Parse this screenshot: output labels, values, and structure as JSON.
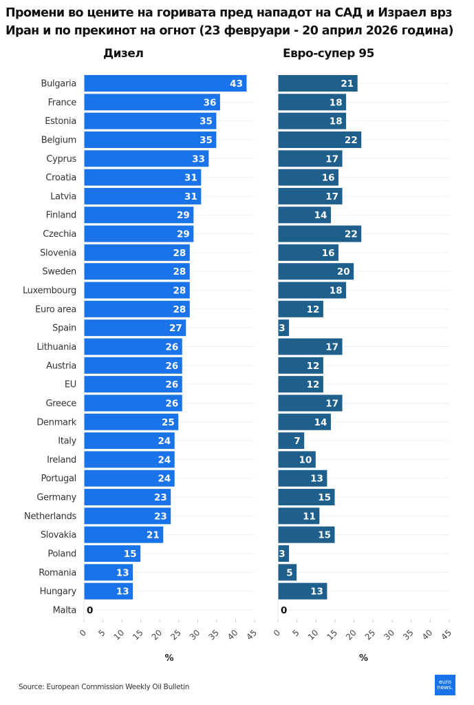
{
  "title": "Промени во цените на горивата пред нападот на САД и Израел врз Иран и по прекинот на огнот (23 февруари - 20 април 2026 година)",
  "source": "Source: European Commission Weekly Oil Bulletin",
  "logo": {
    "line1": "euro",
    "line2": "news."
  },
  "chart_data": [
    {
      "type": "bar",
      "orientation": "horizontal",
      "title": "Дизел",
      "xlabel": "%",
      "ylabel": "",
      "xlim": [
        0,
        45
      ],
      "ticks": [
        0,
        5,
        10,
        15,
        20,
        25,
        30,
        35,
        40,
        45
      ],
      "grid": true,
      "color": "#1a73e8",
      "categories": [
        "Bulgaria",
        "France",
        "Estonia",
        "Belgium",
        "Cyprus",
        "Croatia",
        "Latvia",
        "Finland",
        "Czechia",
        "Slovenia",
        "Sweden",
        "Luxembourg",
        "Euro area",
        "Spain",
        "Lithuania",
        "Austria",
        "EU",
        "Greece",
        "Denmark",
        "Italy",
        "Ireland",
        "Portugal",
        "Germany",
        "Netherlands",
        "Slovakia",
        "Poland",
        "Romania",
        "Hungary",
        "Malta"
      ],
      "values": [
        43,
        36,
        35,
        35,
        33,
        31,
        31,
        29,
        29,
        28,
        28,
        28,
        28,
        27,
        26,
        26,
        26,
        26,
        25,
        24,
        24,
        24,
        23,
        23,
        21,
        15,
        13,
        13,
        0
      ]
    },
    {
      "type": "bar",
      "orientation": "horizontal",
      "title": "Евро-супер 95",
      "xlabel": "%",
      "ylabel": "",
      "xlim": [
        0,
        45
      ],
      "ticks": [
        0,
        5,
        10,
        15,
        20,
        25,
        30,
        35,
        40,
        45
      ],
      "grid": true,
      "color": "#1f5f8b",
      "categories": [
        "Bulgaria",
        "France",
        "Estonia",
        "Belgium",
        "Cyprus",
        "Croatia",
        "Latvia",
        "Finland",
        "Czechia",
        "Slovenia",
        "Sweden",
        "Luxembourg",
        "Euro area",
        "Spain",
        "Lithuania",
        "Austria",
        "EU",
        "Greece",
        "Denmark",
        "Italy",
        "Ireland",
        "Portugal",
        "Germany",
        "Netherlands",
        "Slovakia",
        "Poland",
        "Romania",
        "Hungary",
        "Malta"
      ],
      "values": [
        21,
        18,
        18,
        22,
        17,
        16,
        17,
        14,
        22,
        16,
        20,
        18,
        12,
        3,
        17,
        12,
        12,
        17,
        14,
        7,
        10,
        13,
        15,
        11,
        15,
        3,
        5,
        13,
        0
      ]
    }
  ]
}
